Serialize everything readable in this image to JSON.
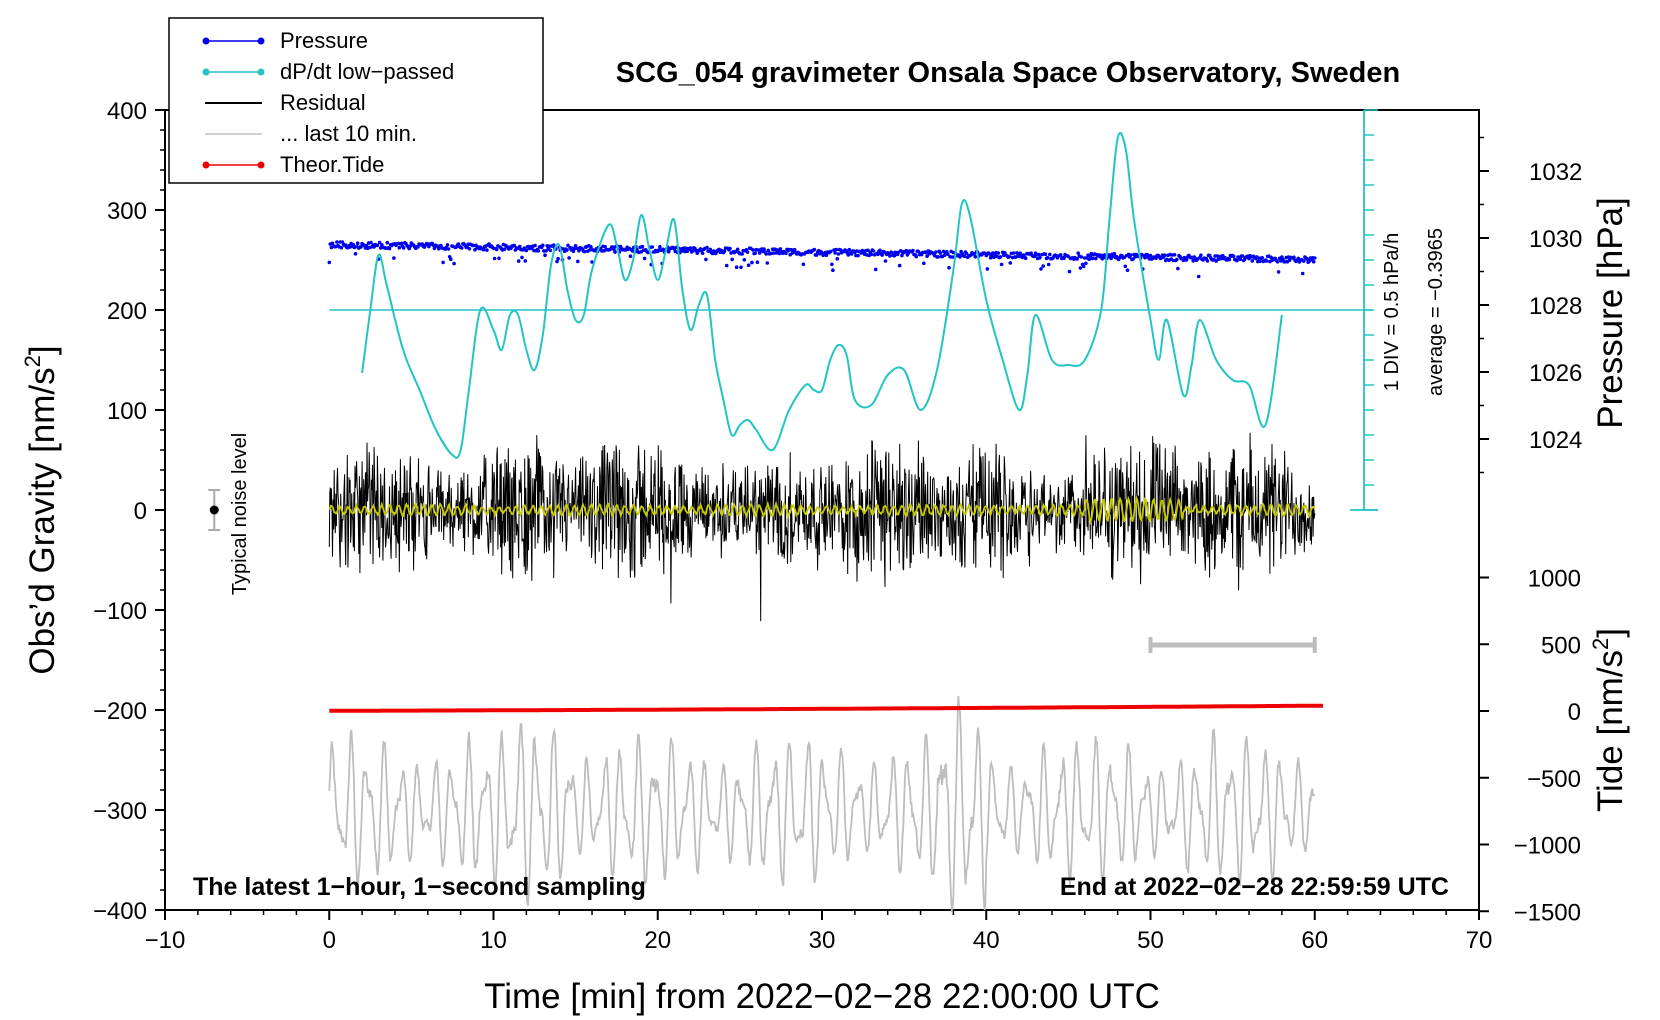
{
  "chart_data": {
    "type": "line",
    "title": "SCG_054 gravimeter Onsala Space Observatory, Sweden",
    "xlabel": "Time [min] from 2022−02−28 22:00:00 UTC",
    "ylabel_left": "Obs’d Gravity [nm/s",
    "ylabel_left_sup": "2",
    "ylabel_left_end": "]",
    "ylabel_pressure": "Pressure [hPa]",
    "ylabel_tide": "Tide [nm/s",
    "ylabel_tide_sup": "2",
    "ylabel_tide_end": "]",
    "xlim": [
      -10,
      70
    ],
    "ylim": [
      -400,
      400
    ],
    "x_ticks": [
      -10,
      0,
      10,
      20,
      30,
      40,
      50,
      60,
      70
    ],
    "x_tick_labels": [
      "−10",
      "0",
      "10",
      "20",
      "30",
      "40",
      "50",
      "60",
      "70"
    ],
    "y_ticks": [
      400,
      300,
      200,
      100,
      0,
      -100,
      -200,
      -300,
      -400
    ],
    "y_tick_labels": [
      "400",
      "300",
      "200",
      "100",
      "0",
      "−100",
      "−200",
      "−300",
      "−400"
    ],
    "pressure_ticks": [
      1032,
      1030,
      1028,
      1026,
      1024
    ],
    "pressure_tick_labels": [
      "1032",
      "1030",
      "1028",
      "1026",
      "1024"
    ],
    "tide_ticks": [
      1000,
      500,
      0,
      -500,
      -1000,
      -1500
    ],
    "tide_tick_labels": [
      "1000",
      "500",
      "0",
      "−500",
      "−1000",
      "−1500"
    ],
    "legend": [
      {
        "label": "Pressure",
        "color": "#0000ee",
        "marker": true
      },
      {
        "label": "dP/dt low−passed",
        "color": "#22c4c4",
        "marker": true
      },
      {
        "label": "Residual",
        "color": "#000000",
        "marker": false
      },
      {
        "label": "... last 10 min.",
        "color": "#c0c0c0",
        "marker": false
      },
      {
        "label": "Theor.Tide",
        "color": "#ee0000",
        "marker": true
      }
    ],
    "annotations": {
      "bottom_left": "The latest 1−hour, 1−second sampling",
      "bottom_right": "End at 2022−02−28 22:59:59 UTC",
      "noise_label": "Typical noise level",
      "div_label": "1 DIV = 0.5 hPa/h",
      "average_label": "average = −0.3965"
    },
    "noise_level": {
      "x": -7,
      "y": 0,
      "err": 20
    },
    "last_10_min_bar": {
      "x_start": 50,
      "x_end": 60,
      "y": -135
    },
    "pressure_series": {
      "name": "Pressure",
      "x_range": [
        0,
        60
      ],
      "start_hpa": 1029.8,
      "end_hpa": 1029.35
    },
    "dpdt_series": {
      "name": "dP/dt low−passed",
      "x": [
        2,
        2.5,
        3,
        3.5,
        4.5,
        5.5,
        6.5,
        7.5,
        8,
        8.5,
        9.2,
        10,
        10.5,
        11,
        11.5,
        12,
        12.5,
        13,
        13.5,
        14,
        14.5,
        15,
        15.5,
        16,
        17,
        17.5,
        18,
        18.5,
        19,
        19.5,
        20,
        20.5,
        21,
        21.5,
        22,
        22.5,
        23,
        23.5,
        24,
        24.5,
        25,
        25.5,
        26,
        27,
        28,
        29,
        29.5,
        30,
        30.5,
        31,
        31.5,
        32,
        33,
        34,
        35,
        36,
        37,
        38,
        38.5,
        39,
        40,
        41,
        42,
        42.5,
        43,
        44,
        45,
        46,
        47,
        47.5,
        48,
        48.5,
        49,
        50,
        50.5,
        51,
        52,
        52.5,
        53,
        54,
        55,
        56,
        57,
        58
      ],
      "y": [
        137,
        200,
        255,
        225,
        160,
        120,
        80,
        55,
        60,
        120,
        200,
        180,
        160,
        195,
        195,
        160,
        140,
        175,
        245,
        265,
        220,
        190,
        195,
        240,
        285,
        265,
        230,
        250,
        295,
        260,
        230,
        260,
        290,
        220,
        180,
        205,
        215,
        150,
        110,
        75,
        85,
        90,
        80,
        60,
        100,
        125,
        120,
        120,
        150,
        165,
        155,
        110,
        105,
        135,
        140,
        100,
        140,
        240,
        305,
        295,
        210,
        150,
        100,
        135,
        195,
        150,
        145,
        150,
        200,
        290,
        372,
        360,
        290,
        190,
        150,
        190,
        115,
        145,
        190,
        150,
        130,
        125,
        85,
        195
      ]
    },
    "tide_series": {
      "name": "Theor.Tide",
      "x_range": [
        0,
        60.5
      ],
      "start_nms2": 2,
      "end_nms2": 40
    }
  }
}
